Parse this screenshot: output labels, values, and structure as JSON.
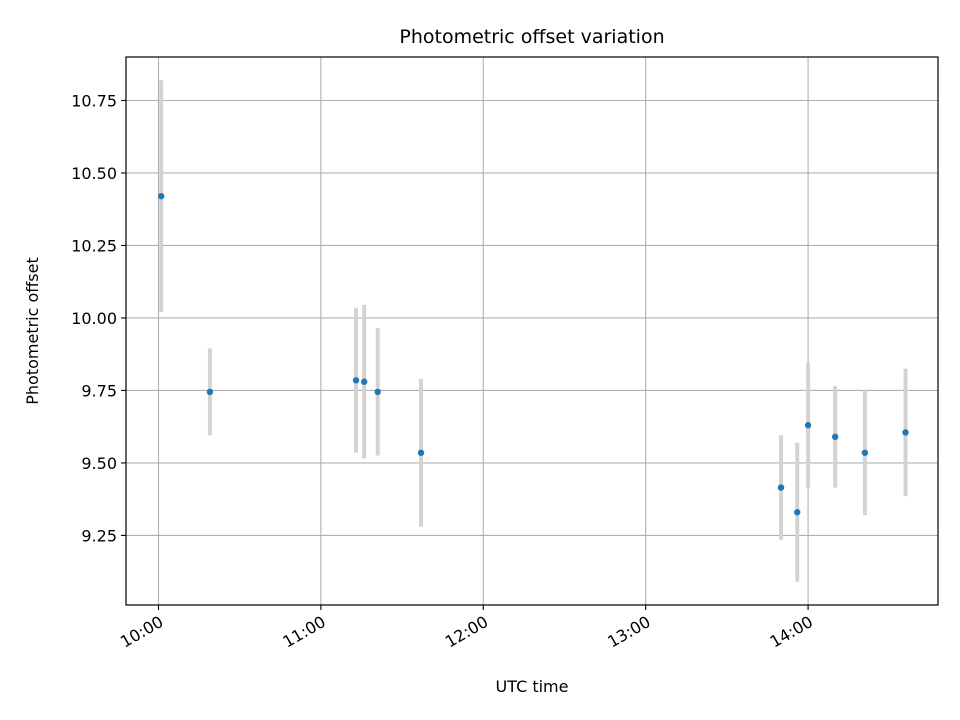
{
  "chart_data": {
    "type": "scatter",
    "title": "Photometric offset variation",
    "xlabel": "UTC time",
    "ylabel": "Photometric offset",
    "x_tick_labels": [
      "10:00",
      "11:00",
      "12:00",
      "13:00",
      "14:00"
    ],
    "y_tick_labels": [
      "9.25",
      "9.50",
      "9.75",
      "10.00",
      "10.25",
      "10.50",
      "10.75"
    ],
    "x_ticks": [
      "10:00",
      "11:00",
      "12:00",
      "13:00",
      "14:00"
    ],
    "y_ticks": [
      9.25,
      9.5,
      9.75,
      10.0,
      10.25,
      10.5,
      10.75
    ],
    "xlim": [
      "09:48",
      "14:48"
    ],
    "ylim": [
      9.01,
      10.9
    ],
    "grid": true,
    "colors": {
      "points": "#1f77b4",
      "errorbars": "#d3d3d3",
      "grid": "#b0b0b0"
    },
    "series": [
      {
        "points": [
          {
            "x": "10:01",
            "y": 10.42,
            "err": 0.4
          },
          {
            "x": "10:19",
            "y": 9.745,
            "err": 0.15
          },
          {
            "x": "11:13",
            "y": 9.785,
            "err": 0.25
          },
          {
            "x": "11:16",
            "y": 9.78,
            "err": 0.265
          },
          {
            "x": "11:21",
            "y": 9.745,
            "err": 0.22
          },
          {
            "x": "11:37",
            "y": 9.535,
            "err": 0.255
          },
          {
            "x": "13:50",
            "y": 9.415,
            "err": 0.18
          },
          {
            "x": "13:56",
            "y": 9.33,
            "err": 0.24
          },
          {
            "x": "14:00",
            "y": 9.63,
            "err": 0.215
          },
          {
            "x": "14:10",
            "y": 9.59,
            "err": 0.175
          },
          {
            "x": "14:21",
            "y": 9.535,
            "err": 0.215
          },
          {
            "x": "14:36",
            "y": 9.605,
            "err": 0.22
          }
        ]
      }
    ]
  }
}
